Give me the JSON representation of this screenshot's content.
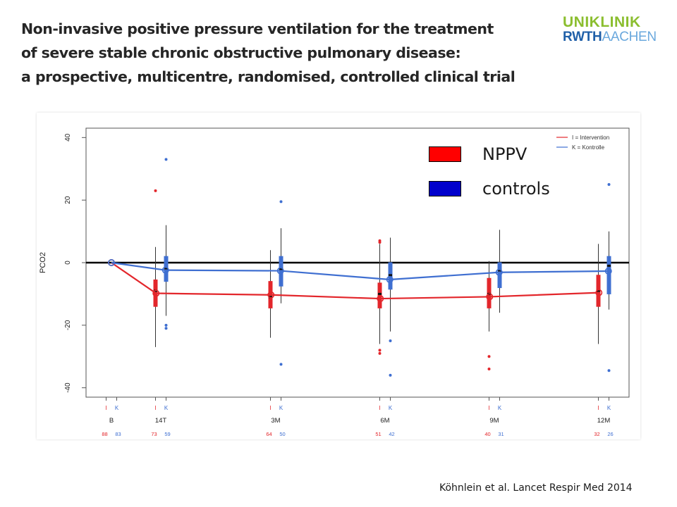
{
  "slide": {
    "title_lines": [
      "Non-invasive positive pressure ventilation for the treatment",
      "of severe stable chronic obstructive pulmonary disease:",
      "a prospective, multicentre, randomised, controlled clinical trial"
    ],
    "logo": {
      "line1": "UNIKLINIK",
      "line2a": "RWTH",
      "line2b": "AACHEN"
    },
    "citation": "Köhnlein et al. Lancet Respir Med 2014"
  },
  "legend": {
    "items": [
      {
        "label": "NPPV",
        "color": "#ff0000"
      },
      {
        "label": "controls",
        "color": "#0000cc"
      }
    ]
  },
  "colors": {
    "intervention": "#e3262b",
    "control": "#3f6fd1"
  },
  "chart_data": {
    "type": "line",
    "ylabel": "PCO2",
    "ylim": [
      -43,
      43
    ],
    "yticks": [
      40,
      20,
      0,
      -20,
      -40
    ],
    "reference_line": 0,
    "legend_entries": [
      "I = Intervention",
      "K = Kontrolle"
    ],
    "timepoints": [
      {
        "label": "B",
        "n_I": "88",
        "n_K": "83"
      },
      {
        "label": "14T",
        "n_I": "73",
        "n_K": "59"
      },
      {
        "label": "3M",
        "n_I": "64",
        "n_K": "50"
      },
      {
        "label": "6M",
        "n_I": "51",
        "n_K": "42"
      },
      {
        "label": "9M",
        "n_I": "40",
        "n_K": "31"
      },
      {
        "label": "12M",
        "n_I": "32",
        "n_K": "26"
      }
    ],
    "group_labels": {
      "intervention": "I",
      "control": "K"
    },
    "series": [
      {
        "name": "I = Intervention",
        "key": "I",
        "means": [
          0,
          -9.8,
          -10.3,
          -11.5,
          -10.9,
          -9.6
        ]
      },
      {
        "name": "K = Kontrolle",
        "key": "K",
        "means": [
          0,
          -2.4,
          -2.6,
          -5.4,
          -3.1,
          -2.7
        ]
      }
    ],
    "boxplots": [
      {
        "series": "I",
        "t": 1,
        "low": -27,
        "q1": -14,
        "median": -9,
        "q3": -5.5,
        "high": 5,
        "outliers": [
          23
        ]
      },
      {
        "series": "K",
        "t": 1,
        "low": -17,
        "q1": -6,
        "median": -2,
        "q3": 2,
        "high": 12,
        "outliers": [
          33,
          -20,
          -21
        ]
      },
      {
        "series": "I",
        "t": 2,
        "low": -24,
        "q1": -14.5,
        "median": -11,
        "q3": -6,
        "high": 4,
        "outliers": []
      },
      {
        "series": "K",
        "t": 2,
        "low": -13,
        "q1": -7.5,
        "median": -2,
        "q3": 2,
        "high": 11,
        "outliers": [
          19.5,
          -32.5
        ]
      },
      {
        "series": "I",
        "t": 3,
        "low": -26,
        "q1": -14.5,
        "median": -10,
        "q3": -6.5,
        "high": 6,
        "outliers": [
          7,
          6.5,
          -28,
          -29
        ]
      },
      {
        "series": "K",
        "t": 3,
        "low": -22,
        "q1": -8.5,
        "median": -4,
        "q3": 0,
        "high": 8,
        "outliers": [
          -25,
          -36
        ]
      },
      {
        "series": "I",
        "t": 4,
        "low": -22,
        "q1": -14.5,
        "median": -10,
        "q3": -5,
        "high": 0.5,
        "outliers": [
          -30,
          -34
        ]
      },
      {
        "series": "K",
        "t": 4,
        "low": -16,
        "q1": -8,
        "median": -2.5,
        "q3": 0,
        "high": 10.5,
        "outliers": []
      },
      {
        "series": "I",
        "t": 5,
        "low": -26,
        "q1": -14,
        "median": -9,
        "q3": -4,
        "high": 6,
        "outliers": []
      },
      {
        "series": "K",
        "t": 5,
        "low": -15,
        "q1": -10,
        "median": -1,
        "q3": 2,
        "high": 10,
        "outliers": [
          25,
          -34.5
        ]
      }
    ]
  }
}
